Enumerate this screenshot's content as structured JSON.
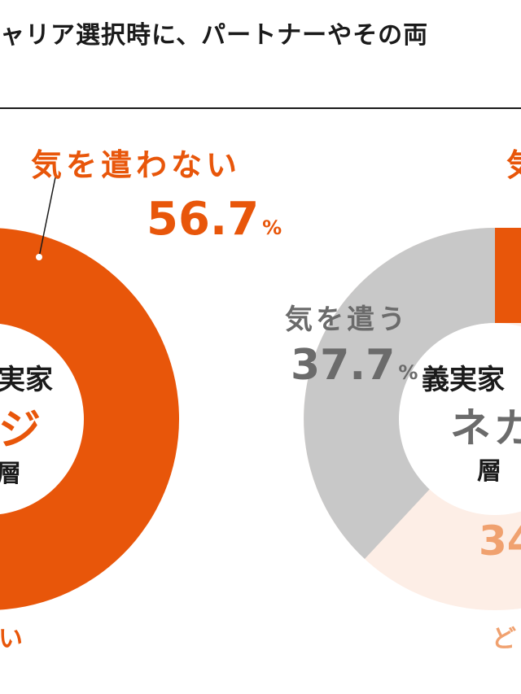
{
  "title": "ャリア選択時に、パートナーやその両",
  "colors": {
    "orange": "#e8560a",
    "gray": "#c8c8c8",
    "pale": "#fdeee6",
    "light_orange": "#f0a16f",
    "text_dark": "#1a1a1a",
    "text_gray": "#6b6b6b"
  },
  "chart_data": [
    {
      "type": "pie",
      "center_text": [
        "実家",
        "ジ",
        "層"
      ],
      "slices": [
        {
          "label": "気を遣わない",
          "value": 56.7,
          "unit": "%",
          "color": "#e8560a"
        }
      ],
      "bottom_fragment": "い"
    },
    {
      "type": "pie",
      "center_text": [
        "義実家",
        "ネガ",
        "層"
      ],
      "slices": [
        {
          "label": "気を遣う",
          "value": 37.7,
          "unit": "%",
          "color": "#c8c8c8"
        },
        {
          "label": "",
          "value": 34,
          "unit": "",
          "color": "#fdeee6"
        }
      ],
      "top_fragment": "気",
      "bottom_fragment": "ど"
    }
  ]
}
